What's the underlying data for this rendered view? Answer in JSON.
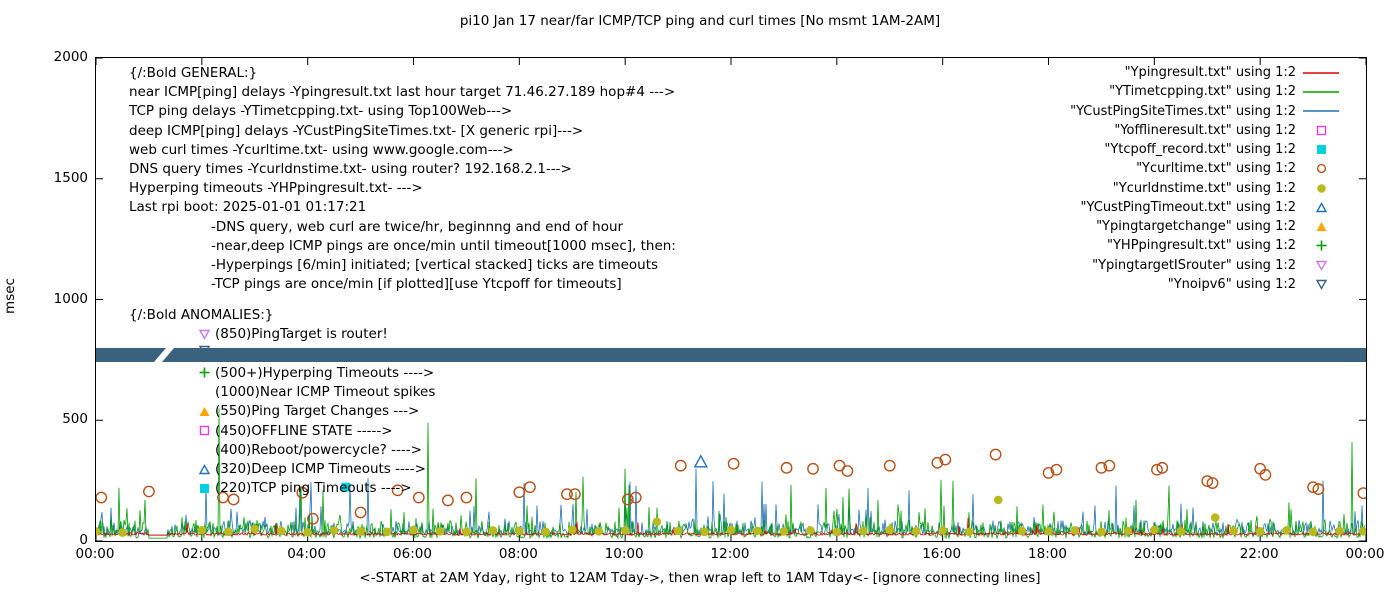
{
  "title": "pi10 Jan 17  near/far ICMP/TCP ping and curl times [No msmt 1AM-2AM]",
  "footer": "<-START at 2AM Yday, right to 12AM Tday->, then wrap left to 1AM Tday<- [ignore connecting lines]",
  "y_axis": {
    "label": "msec",
    "ticks": [
      0,
      500,
      1000,
      1500,
      2000
    ],
    "max": 2000
  },
  "x_axis": {
    "tick_hours": [
      0,
      2,
      4,
      6,
      8,
      10,
      12,
      14,
      16,
      18,
      20,
      22,
      24
    ],
    "tick_labels": [
      "00:00",
      "02:00",
      "04:00",
      "06:00",
      "08:00",
      "10:00",
      "12:00",
      "14:00",
      "16:00",
      "18:00",
      "20:00",
      "22:00",
      "00:00"
    ]
  },
  "legend": [
    {
      "label": "\"Ypingresult.txt\" using 1:2",
      "marker": "line",
      "color": "#e00000"
    },
    {
      "label": "\"YTimetcpping.txt\" using 1:2",
      "marker": "line",
      "color": "#00a000"
    },
    {
      "label": "\"YCustPingSiteTimes.txt\" using 1:2",
      "marker": "line",
      "color": "#2171b5"
    },
    {
      "label": "\"Yofflineresult.txt\" using 1:2",
      "marker": "square-open",
      "color": "#e93ae9"
    },
    {
      "label": "\"Ytcpoff_record.txt\" using 1:2",
      "marker": "square-filled",
      "color": "#00d0e0"
    },
    {
      "label": "\"Ycurltime.txt\" using 1:2",
      "marker": "circle-open",
      "color": "#b5521a"
    },
    {
      "label": "\"Ycurldnstime.txt\" using 1:2",
      "marker": "circle-filled",
      "color": "#b9ba1e"
    },
    {
      "label": "\"YCustPingTimeout.txt\" using 1:2",
      "marker": "tri-up-open",
      "color": "#2171b5"
    },
    {
      "label": "\"Ypingtargetchange\" using 1:2",
      "marker": "tri-up-filled",
      "color": "#ffa500"
    },
    {
      "label": "\"YHPpingresult.txt\" using 1:2",
      "marker": "plus",
      "color": "#00a000"
    },
    {
      "label": "\"YpingtargetISrouter\" using 1:2",
      "marker": "tri-down-open",
      "color": "#d078e8"
    },
    {
      "label": "\"Ynoipv6\" using 1:2",
      "marker": "tri-down-open",
      "color": "#3a617e"
    }
  ],
  "annotations": {
    "general": [
      {
        "text": "{/:Bold GENERAL:}",
        "indent": false
      },
      {
        "text": "near ICMP[ping] delays -Ypingresult.txt last hour target 71.46.27.189 hop#4 --->",
        "indent": false
      },
      {
        "text": "TCP ping delays -YTimetcpping.txt- using Top100Web--->",
        "indent": false
      },
      {
        "text": "deep ICMP[ping] delays -YCustPingSiteTimes.txt- [X generic rpi]--->",
        "indent": false
      },
      {
        "text": "web curl times -Ycurltime.txt- using www.google.com--->",
        "indent": false
      },
      {
        "text": "DNS query times -Ycurldnstime.txt- using router? 192.168.2.1--->",
        "indent": false
      },
      {
        "text": "Hyperping timeouts -YHPpingresult.txt- --->",
        "indent": false
      },
      {
        "text": "Last rpi boot: 2025-01-01 01:17:21",
        "indent": false
      },
      {
        "text": "-DNS query, web curl are twice/hr, beginnng and end of hour",
        "indent": true
      },
      {
        "text": "-near,deep ICMP pings are once/min until timeout[1000 msec], then:",
        "indent": true
      },
      {
        "text": "-Hyperpings [6/min] initiated; [vertical stacked] ticks are timeouts",
        "indent": true
      },
      {
        "text": "-TCP pings are once/min [if plotted][use Ytcpoff for timeouts]",
        "indent": true
      }
    ],
    "anomalies_header": "{/:Bold ANOMALIES:}",
    "anomalies": [
      {
        "marker": "tri-down-open",
        "color": "#d078e8",
        "text": "(850)PingTarget is router!"
      },
      {
        "marker": "tri-down-open",
        "color": "#3a617e",
        "text": ""
      },
      {
        "marker": "plus",
        "color": "#00a000",
        "text": "(500+)Hyperping Timeouts ---->"
      },
      {
        "marker": null,
        "color": null,
        "text": "(1000)Near ICMP Timeout spikes"
      },
      {
        "marker": "tri-up-filled",
        "color": "#ffa500",
        "text": "(550)Ping Target Changes --->"
      },
      {
        "marker": "square-open",
        "color": "#e93ae9",
        "text": "(450)OFFLINE STATE ----->"
      },
      {
        "marker": null,
        "color": null,
        "text": "(400)Reboot/powercycle? ---->"
      },
      {
        "marker": "tri-up-open",
        "color": "#2171b5",
        "text": "(320)Deep ICMP Timeouts ---->"
      },
      {
        "marker": "square-filled",
        "color": "#00d0e0",
        "text": "(220)TCP ping Timeouts ---->"
      }
    ]
  },
  "chart_data": {
    "type": "line+scatter",
    "x_unit": "hours (00:00-24:00, ticks every 2h)",
    "ylim": [
      0,
      2000
    ],
    "ylabel": "msec",
    "no_measurement_window": "1AM-2AM",
    "band": {
      "name": "Ynoipv6",
      "color": "#3a617e",
      "value_msec": 780,
      "thickness_msec": 58,
      "gap_hours": [
        1.0,
        1.35
      ]
    },
    "series": [
      {
        "name": "YCustPingSiteTimes.txt",
        "style": "line",
        "color": "#2171b5",
        "noise": {
          "seed": 777,
          "base": 25,
          "p": [
            0.55,
            0.92
          ],
          "amp": [
            25,
            60,
            130
          ],
          "rare": [
            0.008,
            180,
            90
          ]
        },
        "spikes": [
          [
            5.15,
            260
          ],
          [
            8.1,
            240
          ],
          [
            11.35,
            300
          ],
          [
            14.6,
            220
          ],
          [
            19.3,
            230
          ],
          [
            23.2,
            250
          ]
        ]
      },
      {
        "name": "YTimetcpping.txt",
        "style": "line",
        "color": "#00a000",
        "noise": {
          "seed": 12345,
          "base": 12,
          "p": [
            0.5,
            0.9
          ],
          "amp": [
            28,
            75,
            140
          ],
          "rare": [
            0.012,
            150,
            120
          ]
        },
        "spikes": [
          [
            2.33,
            550
          ],
          [
            6.28,
            490
          ],
          [
            10.0,
            300
          ],
          [
            13.8,
            220
          ],
          [
            16.2,
            250
          ],
          [
            20.3,
            230
          ],
          [
            23.75,
            410
          ]
        ]
      },
      {
        "name": "Ypingresult.txt",
        "style": "line",
        "color": "#e00000",
        "noise": {
          "seed": 99,
          "base": 24,
          "p": [
            0.97,
            0.99
          ],
          "amp": [
            10,
            18,
            30
          ],
          "rare": [
            0.01,
            45,
            40
          ]
        },
        "spikes": [
          [
            3.4,
            75
          ],
          [
            9.1,
            80
          ],
          [
            16.5,
            95
          ],
          [
            21.4,
            70
          ]
        ]
      },
      {
        "name": "Ycurltime.txt",
        "style": "circle-open",
        "color": "#b5521a",
        "points": [
          [
            0.1,
            180
          ],
          [
            1.0,
            205
          ],
          [
            2.4,
            180
          ],
          [
            2.6,
            172
          ],
          [
            3.9,
            200
          ],
          [
            4.1,
            92
          ],
          [
            5.0,
            118
          ],
          [
            5.7,
            210
          ],
          [
            6.1,
            180
          ],
          [
            6.65,
            168
          ],
          [
            7.0,
            180
          ],
          [
            8.0,
            202
          ],
          [
            8.2,
            223
          ],
          [
            8.9,
            194
          ],
          [
            9.05,
            194
          ],
          [
            10.05,
            172
          ],
          [
            10.2,
            180
          ],
          [
            11.05,
            312
          ],
          [
            12.05,
            320
          ],
          [
            13.05,
            303
          ],
          [
            13.55,
            299
          ],
          [
            14.05,
            312
          ],
          [
            14.2,
            290
          ],
          [
            15.0,
            312
          ],
          [
            15.9,
            324
          ],
          [
            16.05,
            337
          ],
          [
            17.0,
            358
          ],
          [
            18.0,
            282
          ],
          [
            18.15,
            295
          ],
          [
            19.0,
            303
          ],
          [
            19.15,
            312
          ],
          [
            20.05,
            295
          ],
          [
            20.15,
            303
          ],
          [
            21.0,
            248
          ],
          [
            21.1,
            240
          ],
          [
            22.0,
            299
          ],
          [
            22.1,
            274
          ],
          [
            23.0,
            223
          ],
          [
            23.1,
            215
          ],
          [
            23.95,
            198
          ]
        ]
      },
      {
        "name": "Ycurldnstime.txt",
        "style": "circle-filled",
        "color": "#b9ba1e",
        "points": [
          [
            0.0,
            40
          ],
          [
            0.5,
            35
          ],
          [
            2.0,
            45
          ],
          [
            2.5,
            38
          ],
          [
            3.0,
            50
          ],
          [
            3.5,
            42
          ],
          [
            4.0,
            36
          ],
          [
            4.5,
            44
          ],
          [
            5.0,
            40
          ],
          [
            5.5,
            38
          ],
          [
            6.0,
            46
          ],
          [
            6.5,
            40
          ],
          [
            7.0,
            38
          ],
          [
            7.5,
            44
          ],
          [
            8.0,
            42
          ],
          [
            8.5,
            38
          ],
          [
            9.0,
            46
          ],
          [
            9.5,
            40
          ],
          [
            10.0,
            44
          ],
          [
            10.6,
            80
          ],
          [
            11.0,
            42
          ],
          [
            11.5,
            38
          ],
          [
            12.0,
            46
          ],
          [
            12.5,
            42
          ],
          [
            13.0,
            40
          ],
          [
            13.5,
            44
          ],
          [
            14.0,
            38
          ],
          [
            14.5,
            42
          ],
          [
            15.0,
            46
          ],
          [
            15.5,
            40
          ],
          [
            16.0,
            44
          ],
          [
            16.5,
            38
          ],
          [
            17.05,
            170
          ],
          [
            17.5,
            42
          ],
          [
            18.0,
            40
          ],
          [
            18.5,
            44
          ],
          [
            19.0,
            38
          ],
          [
            19.5,
            42
          ],
          [
            20.0,
            46
          ],
          [
            20.5,
            40
          ],
          [
            21.15,
            97
          ],
          [
            21.5,
            42
          ],
          [
            22.0,
            40
          ],
          [
            22.5,
            44
          ],
          [
            23.0,
            38
          ],
          [
            23.5,
            42
          ],
          [
            23.95,
            40
          ]
        ]
      },
      {
        "name": "YCustPingTimeout.txt",
        "style": "triangle-open",
        "color": "#2171b5",
        "points": [
          [
            11.43,
            328
          ]
        ]
      },
      {
        "name": "Ytcpoff_record.txt",
        "style": "square-filled",
        "color": "#00d0e0",
        "points": [
          [
            4.72,
            223
          ]
        ]
      }
    ]
  }
}
